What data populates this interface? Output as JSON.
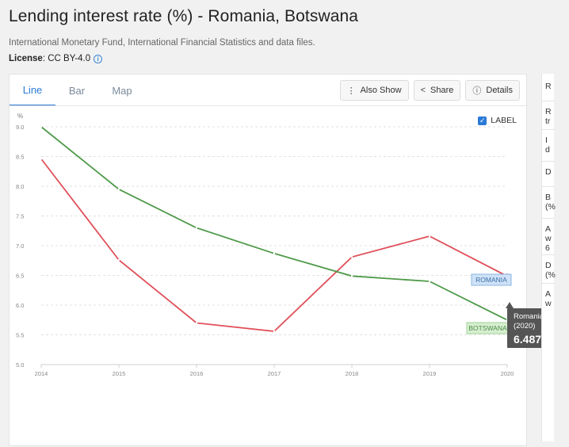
{
  "header": {
    "title": "Lending interest rate (%) - Romania, Botswana",
    "source": "International Monetary Fund, International Financial Statistics and data files.",
    "license_label": "License",
    "license_value": ": CC BY-4.0"
  },
  "tabs": [
    {
      "label": "Line",
      "active": true
    },
    {
      "label": "Bar",
      "active": false
    },
    {
      "label": "Map",
      "active": false
    }
  ],
  "toolbar": {
    "also_show": "Also Show",
    "share": "Share",
    "details": "Details"
  },
  "label_toggle": {
    "label": "LABEL",
    "checked": true
  },
  "tooltip": {
    "country": "Romania",
    "year": "(2020)",
    "value": "6.487"
  },
  "right_panel": {
    "items": [
      "R",
      "R\ntr",
      "I\nd",
      "D",
      "B\n(%",
      "A\nw\n6",
      "D\n(%",
      "A\nw"
    ]
  },
  "chart_data": {
    "type": "line",
    "title": "Lending interest rate (%) - Romania, Botswana",
    "ylabel": "%",
    "xlabel": "",
    "x": [
      2014,
      2015,
      2016,
      2017,
      2018,
      2019,
      2020
    ],
    "ylim": [
      5.0,
      9.0
    ],
    "yticks": [
      "5.0",
      "5.5",
      "6.0",
      "6.5",
      "7.0",
      "7.5",
      "8.0",
      "8.5",
      "9.0"
    ],
    "xticks": [
      "2014",
      "2015",
      "2016",
      "2017",
      "2018",
      "2019",
      "2020"
    ],
    "grid": true,
    "series": [
      {
        "name": "ROMANIA",
        "color": "#e0505a",
        "label_bg": "#cfe2f7",
        "label_border": "#8ab4e0",
        "label_color": "#3a6ea5",
        "values": [
          8.46,
          6.76,
          5.7,
          5.56,
          6.81,
          7.16,
          6.487
        ]
      },
      {
        "name": "BOTSWANA",
        "color": "#4f9a4a",
        "label_bg": "#d6efd0",
        "label_border": "#9fd096",
        "label_color": "#4f8a49",
        "values": [
          9.0,
          7.95,
          7.3,
          6.87,
          6.49,
          6.4,
          5.75
        ]
      }
    ]
  }
}
